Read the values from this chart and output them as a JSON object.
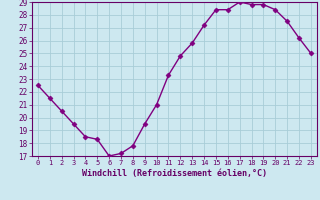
{
  "x": [
    0,
    1,
    2,
    3,
    4,
    5,
    6,
    7,
    8,
    9,
    10,
    11,
    12,
    13,
    14,
    15,
    16,
    17,
    18,
    19,
    20,
    21,
    22,
    23
  ],
  "y": [
    22.5,
    21.5,
    20.5,
    19.5,
    18.5,
    18.3,
    17.0,
    17.2,
    17.8,
    19.5,
    21.0,
    23.3,
    24.8,
    25.8,
    27.2,
    28.4,
    28.4,
    29.0,
    28.8,
    28.8,
    28.4,
    27.5,
    26.2,
    25.0
  ],
  "line_color": "#800080",
  "marker": "D",
  "marker_size": 2.5,
  "bg_color": "#cde8f0",
  "grid_color": "#a8cdd8",
  "xlabel": "Windchill (Refroidissement éolien,°C)",
  "xlabel_color": "#660066",
  "tick_color": "#660066",
  "spine_color": "#660066",
  "ylim": [
    17,
    29
  ],
  "xlim": [
    -0.5,
    23.5
  ],
  "yticks": [
    17,
    18,
    19,
    20,
    21,
    22,
    23,
    24,
    25,
    26,
    27,
    28,
    29
  ],
  "xticks": [
    0,
    1,
    2,
    3,
    4,
    5,
    6,
    7,
    8,
    9,
    10,
    11,
    12,
    13,
    14,
    15,
    16,
    17,
    18,
    19,
    20,
    21,
    22,
    23
  ],
  "xtick_labels": [
    "0",
    "1",
    "2",
    "3",
    "4",
    "5",
    "6",
    "7",
    "8",
    "9",
    "10",
    "11",
    "12",
    "13",
    "14",
    "15",
    "16",
    "17",
    "18",
    "19",
    "20",
    "21",
    "22",
    "23"
  ],
  "ytick_fontsize": 5.5,
  "xtick_fontsize": 5.0,
  "xlabel_fontsize": 6.0
}
